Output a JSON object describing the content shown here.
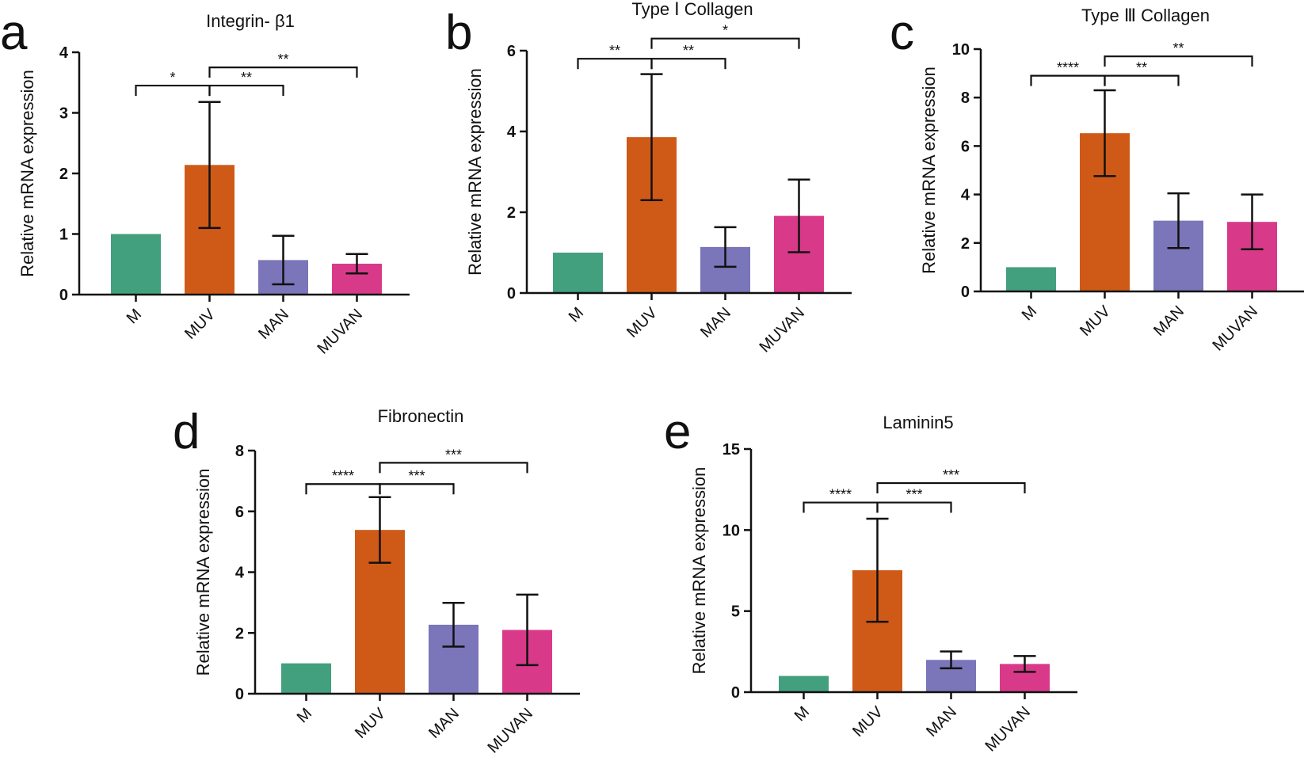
{
  "figure": {
    "categories": [
      "M",
      "MUV",
      "MAN",
      "MUVAN"
    ]
  },
  "chart_data": [
    {
      "panel_label": "a",
      "type": "bar",
      "title": "Integrin- β1",
      "ylabel": "Relative mRNA expression",
      "xlabel": "",
      "categories": [
        "M",
        "MUV",
        "MAN",
        "MUVAN"
      ],
      "values": [
        1.0,
        2.14,
        0.57,
        0.51
      ],
      "errors": [
        0,
        1.04,
        0.4,
        0.16
      ],
      "colors": [
        "#43a07e",
        "#cf5a17",
        "#7b75b9",
        "#d83a89"
      ],
      "ylim": [
        0,
        4
      ],
      "yticks": [
        0,
        1,
        2,
        3,
        4
      ],
      "significance": [
        {
          "from": 0,
          "to": 1,
          "label": "*",
          "y": 3.45
        },
        {
          "from": 1,
          "to": 2,
          "label": "**",
          "y": 3.45
        },
        {
          "from": 1,
          "to": 3,
          "label": "**",
          "y": 3.75
        }
      ]
    },
    {
      "panel_label": "b",
      "type": "bar",
      "title": "Type Ⅰ Collagen",
      "ylabel": "Relative mRNA expression",
      "xlabel": "",
      "categories": [
        "M",
        "MUV",
        "MAN",
        "MUVAN"
      ],
      "values": [
        1.0,
        3.86,
        1.14,
        1.91
      ],
      "errors": [
        0,
        1.56,
        0.49,
        0.9
      ],
      "colors": [
        "#43a07e",
        "#cf5a17",
        "#7b75b9",
        "#d83a89"
      ],
      "ylim": [
        0,
        6
      ],
      "yticks": [
        0,
        2,
        4,
        6
      ],
      "significance": [
        {
          "from": 0,
          "to": 1,
          "label": "**",
          "y": 5.8
        },
        {
          "from": 1,
          "to": 2,
          "label": "**",
          "y": 5.8
        },
        {
          "from": 1,
          "to": 3,
          "label": "*",
          "y": 6.3
        }
      ]
    },
    {
      "panel_label": "c",
      "type": "bar",
      "title": "Type Ⅲ Collagen",
      "ylabel": "Relative mRNA expression",
      "xlabel": "",
      "categories": [
        "M",
        "MUV",
        "MAN",
        "MUVAN"
      ],
      "values": [
        1.0,
        6.53,
        2.92,
        2.87
      ],
      "errors": [
        0,
        1.77,
        1.13,
        1.13
      ],
      "colors": [
        "#43a07e",
        "#cf5a17",
        "#7b75b9",
        "#d83a89"
      ],
      "ylim": [
        0,
        10
      ],
      "yticks": [
        0,
        2,
        4,
        6,
        8,
        10
      ],
      "significance": [
        {
          "from": 0,
          "to": 1,
          "label": "****",
          "y": 8.9
        },
        {
          "from": 1,
          "to": 2,
          "label": "**",
          "y": 8.9
        },
        {
          "from": 1,
          "to": 3,
          "label": "**",
          "y": 9.7
        }
      ]
    },
    {
      "panel_label": "d",
      "type": "bar",
      "title": "Fibronectin",
      "ylabel": "Relative mRNA expression",
      "xlabel": "",
      "categories": [
        "M",
        "MUV",
        "MAN",
        "MUVAN"
      ],
      "values": [
        1.0,
        5.39,
        2.27,
        2.1
      ],
      "errors": [
        0,
        1.08,
        0.72,
        1.16
      ],
      "colors": [
        "#43a07e",
        "#cf5a17",
        "#7b75b9",
        "#d83a89"
      ],
      "ylim": [
        0,
        8
      ],
      "yticks": [
        0,
        2,
        4,
        6,
        8
      ],
      "significance": [
        {
          "from": 0,
          "to": 1,
          "label": "****",
          "y": 6.9
        },
        {
          "from": 1,
          "to": 2,
          "label": "***",
          "y": 6.9
        },
        {
          "from": 1,
          "to": 3,
          "label": "***",
          "y": 7.6
        }
      ]
    },
    {
      "panel_label": "e",
      "type": "bar",
      "title": "Laminin5",
      "ylabel": "Relative mRNA expression",
      "xlabel": "",
      "categories": [
        "M",
        "MUV",
        "MAN",
        "MUVAN"
      ],
      "values": [
        1.0,
        7.52,
        1.99,
        1.74
      ],
      "errors": [
        0,
        3.18,
        0.52,
        0.49
      ],
      "colors": [
        "#43a07e",
        "#cf5a17",
        "#7b75b9",
        "#d83a89"
      ],
      "ylim": [
        0,
        15
      ],
      "yticks": [
        0,
        5,
        10,
        15
      ],
      "significance": [
        {
          "from": 0,
          "to": 1,
          "label": "****",
          "y": 11.7
        },
        {
          "from": 1,
          "to": 2,
          "label": "***",
          "y": 11.7
        },
        {
          "from": 1,
          "to": 3,
          "label": "***",
          "y": 12.9
        }
      ]
    }
  ]
}
